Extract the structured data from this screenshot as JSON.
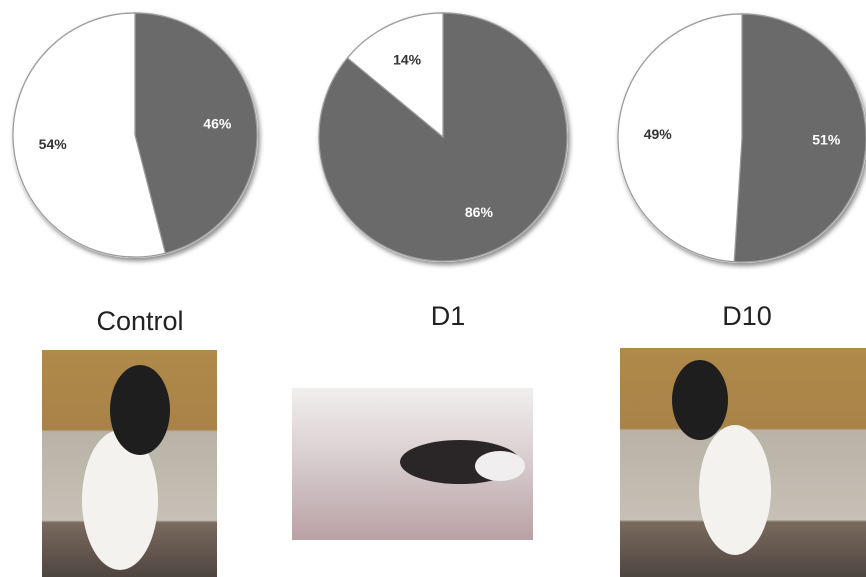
{
  "chart_data": [
    {
      "type": "pie",
      "title": "Control",
      "values": [
        46,
        54
      ],
      "value_labels": [
        "46%",
        "54%"
      ],
      "colors": [
        "#6a6a6a",
        "#ffffff"
      ]
    },
    {
      "type": "pie",
      "title": "D1",
      "values": [
        86,
        14
      ],
      "value_labels": [
        "86%",
        "14%"
      ],
      "colors": [
        "#6a6a6a",
        "#ffffff"
      ]
    },
    {
      "type": "pie",
      "title": "D10",
      "values": [
        51,
        49
      ],
      "value_labels": [
        "51%",
        "49%"
      ],
      "colors": [
        "#6a6a6a",
        "#ffffff"
      ]
    }
  ]
}
